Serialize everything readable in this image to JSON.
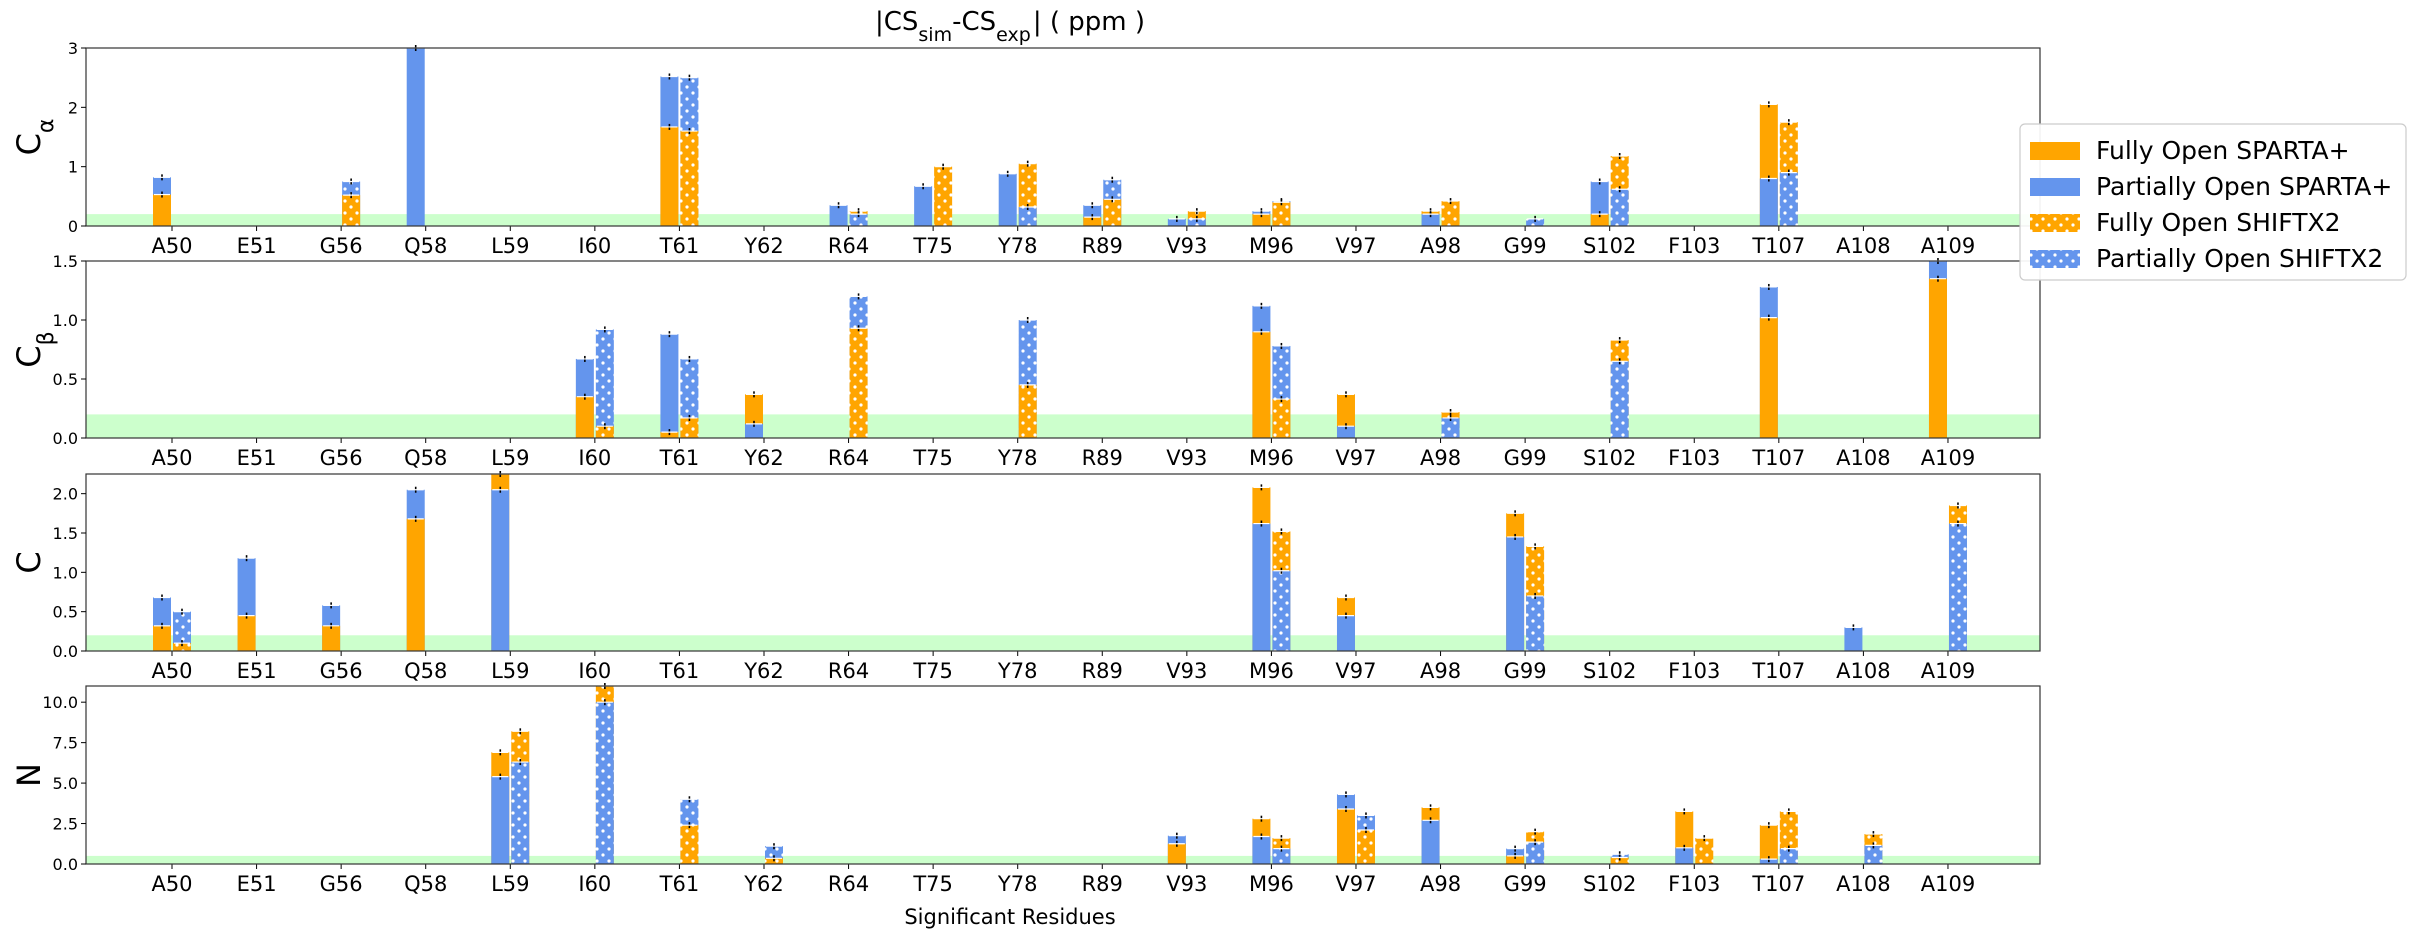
{
  "figure": {
    "title_main": "|CS",
    "title_sub1": "sim",
    "title_mid": "-CS",
    "title_sub2": "exp",
    "title_end": "|  ( ppm )",
    "xlabel": "Significant Residues"
  },
  "colors": {
    "fully_open": "#FFA500",
    "partially_open": "#6495ED",
    "threshold_band": "#CCFFCC",
    "error_bar": "#000000"
  },
  "legend": {
    "placement": "right",
    "items": [
      {
        "key": "fo_sparta",
        "label": "Fully Open SPARTA+",
        "color": "#FFA500",
        "hatch": false
      },
      {
        "key": "po_sparta",
        "label": "Partially Open SPARTA+",
        "color": "#6495ED",
        "hatch": false
      },
      {
        "key": "fo_shiftx",
        "label": "Fully Open SHIFTX2",
        "color": "#FFA500",
        "hatch": true
      },
      {
        "key": "po_shiftx",
        "label": "Partially Open SHIFTX2",
        "color": "#6495ED",
        "hatch": true
      }
    ]
  },
  "chart_data": [
    {
      "type": "bar",
      "panel": "Calpha",
      "ylabel": "C",
      "ylabel_sub": "α",
      "ylim": [
        0,
        3
      ],
      "yticks": [
        "0",
        "1",
        "2",
        "3"
      ],
      "threshold": 0.2,
      "categories": [
        "A50",
        "E51",
        "G56",
        "Q58",
        "L59",
        "I60",
        "T61",
        "Y62",
        "R64",
        "T75",
        "Y78",
        "R89",
        "V93",
        "M96",
        "V97",
        "A98",
        "G99",
        "S102",
        "F103",
        "T107",
        "A108",
        "A109"
      ],
      "series": [
        {
          "name": "Fully Open SPARTA+",
          "values": [
            0.53,
            0,
            0,
            0,
            0,
            0,
            1.67,
            0,
            0,
            0,
            0,
            0.15,
            0,
            0.2,
            0,
            0.25,
            0,
            0.2,
            0,
            2.05,
            0,
            0
          ]
        },
        {
          "name": "Partially Open SPARTA+",
          "values": [
            0.82,
            0,
            0,
            3.0,
            0,
            0,
            2.52,
            0,
            0.35,
            0.67,
            0.88,
            0.35,
            0.12,
            0.25,
            0,
            0.2,
            0,
            0.75,
            0,
            0.8,
            0,
            0
          ]
        },
        {
          "name": "Fully Open SHIFTX2",
          "values": [
            0,
            0,
            0.52,
            0,
            0,
            0,
            1.6,
            0,
            0.25,
            1.0,
            1.05,
            0.45,
            0.25,
            0.4,
            0,
            0.42,
            0,
            1.18,
            0,
            1.75,
            0,
            0
          ]
        },
        {
          "name": "Partially Open SHIFTX2",
          "values": [
            0,
            0,
            0.75,
            0,
            0,
            0,
            2.5,
            0,
            0.2,
            0,
            0.32,
            0.78,
            0.12,
            0.42,
            0,
            0,
            0.12,
            0.62,
            0,
            0.9,
            0,
            0
          ]
        }
      ]
    },
    {
      "type": "bar",
      "panel": "Cbeta",
      "ylabel": "C",
      "ylabel_sub": "β",
      "ylim": [
        0,
        1.5
      ],
      "yticks": [
        "0.0",
        "0.5",
        "1.0",
        "1.5"
      ],
      "threshold": 0.2,
      "categories": [
        "A50",
        "E51",
        "G56",
        "Q58",
        "L59",
        "I60",
        "T61",
        "Y62",
        "R64",
        "T75",
        "Y78",
        "R89",
        "V93",
        "M96",
        "V97",
        "A98",
        "G99",
        "S102",
        "F103",
        "T107",
        "A108",
        "A109"
      ],
      "series": [
        {
          "name": "Fully Open SPARTA+",
          "values": [
            0,
            0,
            0,
            0,
            0,
            0.35,
            0.05,
            0.37,
            0,
            0,
            0,
            0,
            0,
            0.9,
            0.37,
            0,
            0,
            0,
            0,
            1.02,
            0,
            1.35
          ]
        },
        {
          "name": "Partially Open SPARTA+",
          "values": [
            0,
            0,
            0,
            0,
            0,
            0.67,
            0.88,
            0.12,
            0,
            0,
            0,
            0,
            0,
            1.12,
            0.1,
            0,
            0,
            0,
            0,
            1.28,
            0,
            1.52
          ]
        },
        {
          "name": "Fully Open SHIFTX2",
          "values": [
            0,
            0,
            0,
            0,
            0,
            0.1,
            0.17,
            0,
            0.93,
            0,
            0.45,
            0,
            0,
            0.33,
            0,
            0.22,
            0,
            0.83,
            0,
            0,
            0,
            0
          ]
        },
        {
          "name": "Partially Open SHIFTX2",
          "values": [
            0,
            0,
            0,
            0,
            0,
            0.92,
            0.67,
            0,
            1.2,
            0,
            1.0,
            0,
            0,
            0.78,
            0,
            0.17,
            0,
            0.65,
            0,
            0,
            0,
            0
          ]
        }
      ]
    },
    {
      "type": "bar",
      "panel": "C",
      "ylabel": "C",
      "ylabel_sub": "",
      "ylim": [
        0,
        2.25
      ],
      "yticks": [
        "0.0",
        "0.5",
        "1.0",
        "1.5",
        "2.0"
      ],
      "threshold": 0.2,
      "categories": [
        "A50",
        "E51",
        "G56",
        "Q58",
        "L59",
        "I60",
        "T61",
        "Y62",
        "R64",
        "T75",
        "Y78",
        "R89",
        "V93",
        "M96",
        "V97",
        "A98",
        "G99",
        "S102",
        "F103",
        "T107",
        "A108",
        "A109"
      ],
      "series": [
        {
          "name": "Fully Open SPARTA+",
          "values": [
            0.32,
            0.45,
            0.32,
            1.68,
            2.3,
            0,
            0,
            0,
            0,
            0,
            0,
            0,
            0,
            2.08,
            0.68,
            0,
            1.75,
            0,
            0,
            0,
            0,
            0
          ]
        },
        {
          "name": "Partially Open SPARTA+",
          "values": [
            0.68,
            1.18,
            0.58,
            2.05,
            2.05,
            0,
            0,
            0,
            0,
            0,
            0,
            0,
            0,
            1.62,
            0.45,
            0,
            1.45,
            0,
            0,
            0,
            0.3,
            0
          ]
        },
        {
          "name": "Fully Open SHIFTX2",
          "values": [
            0.1,
            0,
            0,
            0,
            0,
            0,
            0,
            0,
            0,
            0,
            0,
            0,
            0,
            1.52,
            0,
            0,
            1.33,
            0,
            0,
            0,
            0,
            1.85
          ]
        },
        {
          "name": "Partially Open SHIFTX2",
          "values": [
            0.5,
            0,
            0,
            0,
            0,
            0,
            0,
            0,
            0,
            0,
            0,
            0,
            0,
            1.02,
            0,
            0,
            0.7,
            0,
            0,
            0,
            0,
            1.62
          ]
        }
      ]
    },
    {
      "type": "bar",
      "panel": "N",
      "ylabel": "N",
      "ylabel_sub": "",
      "ylim": [
        0,
        11
      ],
      "yticks": [
        "0.0",
        "2.5",
        "5.0",
        "7.5",
        "10.0"
      ],
      "threshold": 0.5,
      "categories": [
        "A50",
        "E51",
        "G56",
        "Q58",
        "L59",
        "I60",
        "T61",
        "Y62",
        "R64",
        "T75",
        "Y78",
        "R89",
        "V93",
        "M96",
        "V97",
        "A98",
        "G99",
        "S102",
        "F103",
        "T107",
        "A108",
        "A109"
      ],
      "series": [
        {
          "name": "Fully Open SPARTA+",
          "values": [
            0,
            0,
            0,
            0,
            6.9,
            0,
            0,
            0,
            0,
            0,
            0,
            0,
            1.25,
            2.8,
            3.4,
            3.5,
            0.5,
            0,
            3.25,
            2.4,
            0,
            0
          ]
        },
        {
          "name": "Partially Open SPARTA+",
          "values": [
            0,
            0,
            0,
            0,
            5.4,
            0,
            0,
            0,
            0,
            0,
            0,
            0,
            1.75,
            1.7,
            4.3,
            2.7,
            0.95,
            0,
            1.0,
            0.3,
            0,
            0
          ]
        },
        {
          "name": "Fully Open SHIFTX2",
          "values": [
            0,
            0,
            0,
            0,
            8.2,
            11.0,
            2.4,
            0.35,
            0,
            0,
            0,
            0,
            0,
            1.6,
            2.1,
            0,
            2.0,
            0.4,
            1.6,
            3.25,
            1.85,
            0
          ]
        },
        {
          "name": "Partially Open SHIFTX2",
          "values": [
            0,
            0,
            0,
            0,
            6.3,
            10.0,
            4.0,
            1.1,
            0,
            0,
            0,
            0,
            0,
            0.95,
            3.0,
            0,
            1.35,
            0.6,
            0,
            0.95,
            1.15,
            0
          ]
        }
      ]
    }
  ]
}
